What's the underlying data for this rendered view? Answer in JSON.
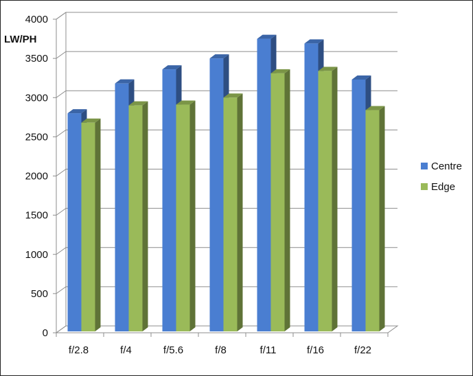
{
  "chart_data": {
    "type": "bar",
    "title": "",
    "xlabel": "",
    "ylabel": "LW/PH",
    "ylim": [
      0,
      4000
    ],
    "yticks": [
      0,
      500,
      1000,
      1500,
      2000,
      2500,
      3000,
      3500,
      4000
    ],
    "categories": [
      "f/2.8",
      "f/4",
      "f/5.6",
      "f/8",
      "f/11",
      "f/16",
      "f/22"
    ],
    "series": [
      {
        "name": "Centre",
        "color": "#4a7ed1",
        "values": [
          2800,
          3180,
          3360,
          3500,
          3750,
          3690,
          3230
        ]
      },
      {
        "name": "Edge",
        "color": "#9aba59",
        "values": [
          2680,
          2900,
          2910,
          3000,
          3310,
          3340,
          2840
        ]
      }
    ],
    "grid": true,
    "legend": "right",
    "style": "3d-columns"
  }
}
